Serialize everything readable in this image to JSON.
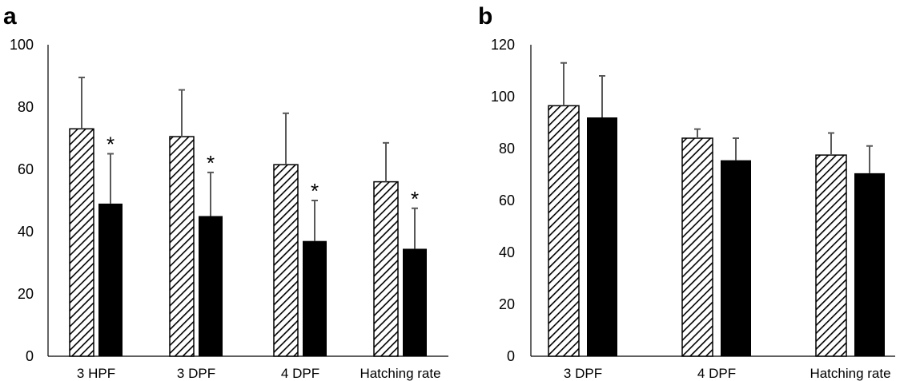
{
  "chart_data": [
    {
      "type": "bar",
      "panel_label": "a",
      "categories": [
        "3 HPF",
        "3 DPF",
        "4 DPF",
        "Hatching rate"
      ],
      "series": [
        {
          "pattern": "diagonal-hatch",
          "values": [
            73,
            70.5,
            61.5,
            56
          ],
          "error": [
            16.5,
            15,
            16.5,
            12.5
          ]
        },
        {
          "pattern": "solid-black",
          "values": [
            49,
            45,
            37,
            34.5
          ],
          "error": [
            16,
            14,
            13,
            13
          ],
          "annotations": [
            "*",
            "*",
            "*",
            "*"
          ]
        }
      ],
      "yticks": [
        0,
        20,
        40,
        60,
        80,
        100
      ],
      "ylim": [
        0,
        100
      ],
      "grid": false
    },
    {
      "type": "bar",
      "panel_label": "b",
      "categories": [
        "3 DPF",
        "4 DPF",
        "Hatching rate"
      ],
      "series": [
        {
          "pattern": "diagonal-hatch",
          "values": [
            96.5,
            84,
            77.5
          ],
          "error": [
            16.5,
            3.5,
            8.5
          ]
        },
        {
          "pattern": "solid-black",
          "values": [
            92,
            75.5,
            70.5
          ],
          "error": [
            16,
            8.5,
            10.5
          ]
        }
      ],
      "yticks": [
        0,
        20,
        40,
        60,
        80,
        100,
        120
      ],
      "ylim": [
        0,
        120
      ],
      "grid": false
    }
  ],
  "colors": {
    "bar_fill_solid": "#000000",
    "bar_hatch": "#000000",
    "bar_background": "#ffffff",
    "error_bar": "#595959",
    "axis": "#000000"
  }
}
